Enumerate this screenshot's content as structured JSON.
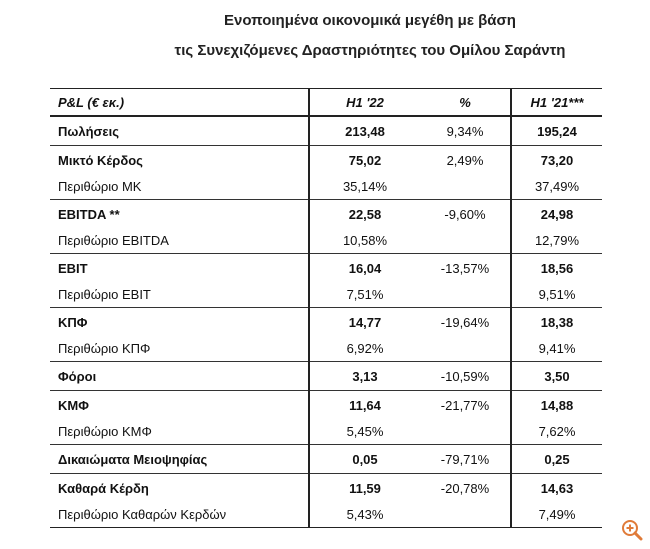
{
  "title": [
    "Ενοποιημένα οικονομικά μεγέθη με βάση",
    "τις Συνεχιζόμενες Δραστηριότητες του Ομίλου Σαράντη"
  ],
  "table": {
    "header": [
      "P&L (€ εκ.)",
      "H1 '22",
      "%",
      "H1 '21***"
    ],
    "groups": [
      [
        {
          "label": "Πωλήσεις",
          "h1_22": "213,48",
          "pct": "9,34%",
          "h1_21": "195,24"
        }
      ],
      [
        {
          "label": "Μικτό Κέρδος",
          "h1_22": "75,02",
          "pct": "2,49%",
          "h1_21": "73,20"
        },
        {
          "label": "Περιθώριο ΜΚ",
          "h1_22": "35,14%",
          "h1_21": "37,49%"
        }
      ],
      [
        {
          "label": "EBITDA **",
          "h1_22": "22,58",
          "pct": "-9,60%",
          "h1_21": "24,98"
        },
        {
          "label": "Περιθώριο EBITDA",
          "h1_22": "10,58%",
          "h1_21": "12,79%"
        }
      ],
      [
        {
          "label": "EBIT",
          "h1_22": "16,04",
          "pct": "-13,57%",
          "h1_21": "18,56"
        },
        {
          "label": "Περιθώριο EBIT",
          "h1_22": "7,51%",
          "h1_21": "9,51%"
        }
      ],
      [
        {
          "label": "ΚΠΦ",
          "h1_22": "14,77",
          "pct": "-19,64%",
          "h1_21": "18,38"
        },
        {
          "label": "Περιθώριο ΚΠΦ",
          "h1_22": "6,92%",
          "h1_21": "9,41%"
        }
      ],
      [
        {
          "label": "Φόροι",
          "h1_22": "3,13",
          "pct": "-10,59%",
          "h1_21": "3,50"
        }
      ],
      [
        {
          "label": "ΚΜΦ",
          "h1_22": "11,64",
          "pct": "-21,77%",
          "h1_21": "14,88"
        },
        {
          "label": "Περιθώριο ΚΜΦ",
          "h1_22": "5,45%",
          "h1_21": "7,62%"
        }
      ],
      [
        {
          "label": "Δικαιώματα Μειοψηφίας",
          "h1_22": "0,05",
          "pct": "-79,71%",
          "h1_21": "0,25"
        }
      ],
      [
        {
          "label": "Καθαρά Κέρδη",
          "h1_22": "11,59",
          "pct": "-20,78%",
          "h1_21": "14,63"
        },
        {
          "label": "Περιθώριο Καθαρών Κερδών",
          "h1_22": "5,43%",
          "h1_21": "7,49%"
        }
      ]
    ]
  }
}
